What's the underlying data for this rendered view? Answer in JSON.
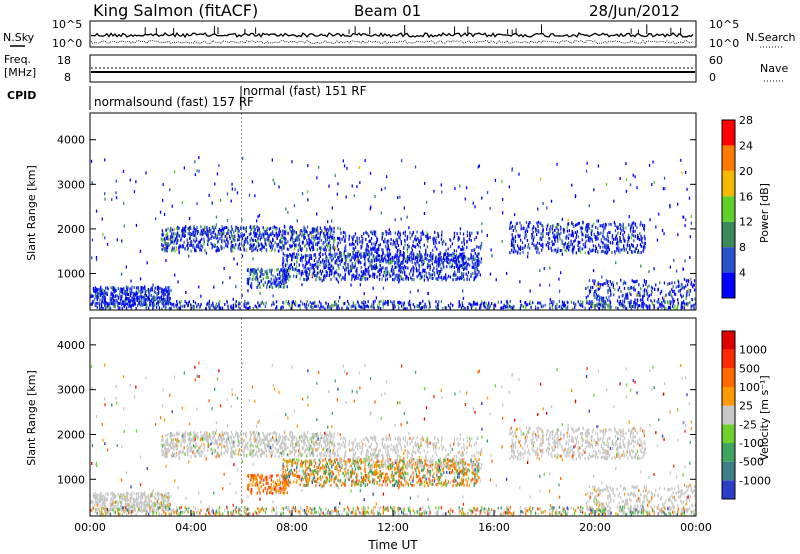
{
  "header": {
    "station": "King Salmon (fitACF)",
    "beam": "Beam 01",
    "date": "28/Jun/2012"
  },
  "noise_panel": {
    "left_label": "N.Sky",
    "right_label": "N.Search",
    "tick_top": "10^5",
    "tick_bottom": "10^0"
  },
  "freq_panel": {
    "left_label_1": "Freq.",
    "left_label_2": "[MHz]",
    "left_ticks": [
      "18",
      "8"
    ],
    "right_label": "Nave",
    "right_ticks": [
      "60",
      "0"
    ]
  },
  "cpid": {
    "label": "CPID",
    "modes": [
      {
        "text": "normalsound (fast) 157 RF"
      },
      {
        "text": "normal (fast) 151 RF"
      }
    ]
  },
  "chart_data": [
    {
      "type": "heatmap",
      "title": "",
      "xlabel": "",
      "ylabel": "Slant Range [km]",
      "xlim": [
        0,
        24
      ],
      "ylim": [
        180,
        4600
      ],
      "yticks": [
        "1000",
        "2000",
        "3000",
        "4000"
      ],
      "colorbar": {
        "label": "Power [dB]",
        "ticks": [
          "4",
          "8",
          "12",
          "16",
          "20",
          "24",
          "28"
        ],
        "colors": [
          "#0000ff",
          "#2a52cc",
          "#3a8a5a",
          "#5fcf2a",
          "#f5b800",
          "#ff7a00",
          "#ff0000"
        ]
      }
    },
    {
      "type": "heatmap",
      "title": "",
      "xlabel": "Time UT",
      "ylabel": "Slant Range [km]",
      "xlim": [
        0,
        24
      ],
      "ylim": [
        180,
        4600
      ],
      "xticks": [
        "00:00",
        "04:00",
        "08:00",
        "12:00",
        "16:00",
        "20:00",
        "00:00"
      ],
      "yticks": [
        "1000",
        "2000",
        "3000",
        "4000"
      ],
      "colorbar": {
        "label": "Velocity [m s⁻¹]",
        "ticks": [
          "1000",
          "500",
          "100",
          "25",
          "-25",
          "-100",
          "-500",
          "-1000"
        ],
        "colors": [
          "#2c3ec8",
          "#3f7f8a",
          "#3ea560",
          "#6fd22c",
          "#c8c8c8",
          "#ff9a00",
          "#ff6a00",
          "#ff2a00",
          "#e00000"
        ]
      }
    }
  ]
}
